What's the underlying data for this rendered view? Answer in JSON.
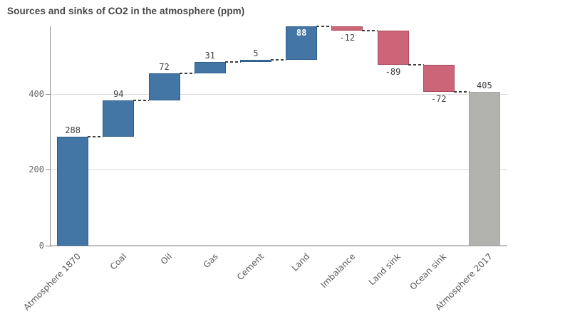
{
  "title": "Sources and sinks of CO2 in the atmosphere (ppm)",
  "chart_data": {
    "type": "bar",
    "subtype": "waterfall",
    "title": "Sources and sinks of CO2 in the atmosphere (ppm)",
    "xlabel": "",
    "ylabel": "",
    "ylim": [
      0,
      578
    ],
    "yticks": [
      0,
      200,
      400
    ],
    "grid": true,
    "legend": "none",
    "categories": [
      "Atmosphere 1870",
      "Coal",
      "Oil",
      "Gas",
      "Cement",
      "Land",
      "Imbalance",
      "Land sink",
      "Ocean sink",
      "Atmosphere 2017"
    ],
    "bars": [
      {
        "label": "Atmosphere 1870",
        "value": 288,
        "display": "288",
        "start": 0,
        "end": 288,
        "kind": "positive",
        "label_position": "above"
      },
      {
        "label": "Coal",
        "value": 94,
        "display": "94",
        "start": 288,
        "end": 382,
        "kind": "positive",
        "label_position": "above"
      },
      {
        "label": "Oil",
        "value": 72,
        "display": "72",
        "start": 382,
        "end": 454,
        "kind": "positive",
        "label_position": "above"
      },
      {
        "label": "Gas",
        "value": 31,
        "display": "31",
        "start": 454,
        "end": 485,
        "kind": "positive",
        "label_position": "above"
      },
      {
        "label": "Cement",
        "value": 5,
        "display": "5",
        "start": 485,
        "end": 490,
        "kind": "positive",
        "label_position": "above"
      },
      {
        "label": "Land",
        "value": 88,
        "display": "88",
        "start": 490,
        "end": 578,
        "kind": "positive",
        "label_position": "inside"
      },
      {
        "label": "Imbalance",
        "value": -12,
        "display": "-12",
        "start": 578,
        "end": 566,
        "kind": "negative",
        "label_position": "below"
      },
      {
        "label": "Land sink",
        "value": -89,
        "display": "-89",
        "start": 566,
        "end": 477,
        "kind": "negative",
        "label_position": "below"
      },
      {
        "label": "Ocean sink",
        "value": -72,
        "display": "-72",
        "start": 477,
        "end": 405,
        "kind": "negative",
        "label_position": "below"
      },
      {
        "label": "Atmosphere 2017",
        "value": 405,
        "display": "405",
        "start": 0,
        "end": 405,
        "kind": "total",
        "label_position": "above"
      }
    ],
    "colors": {
      "positive": "#4376a4",
      "positive_border": "#2a5d8a",
      "negative": "#cb6577",
      "negative_border": "#ac4a5e",
      "total": "#b2b2af",
      "total_border": "#a3a3a0",
      "connector": "#3f3f3f",
      "grid": "#d9d9d9",
      "baseline": "#bfbfbf",
      "axis": "#8a8a8a",
      "value_text": "#404040",
      "value_text_inside": "#ffffff",
      "tick_text": "#666666",
      "category_text": "#595959",
      "title_text": "#474747"
    }
  }
}
